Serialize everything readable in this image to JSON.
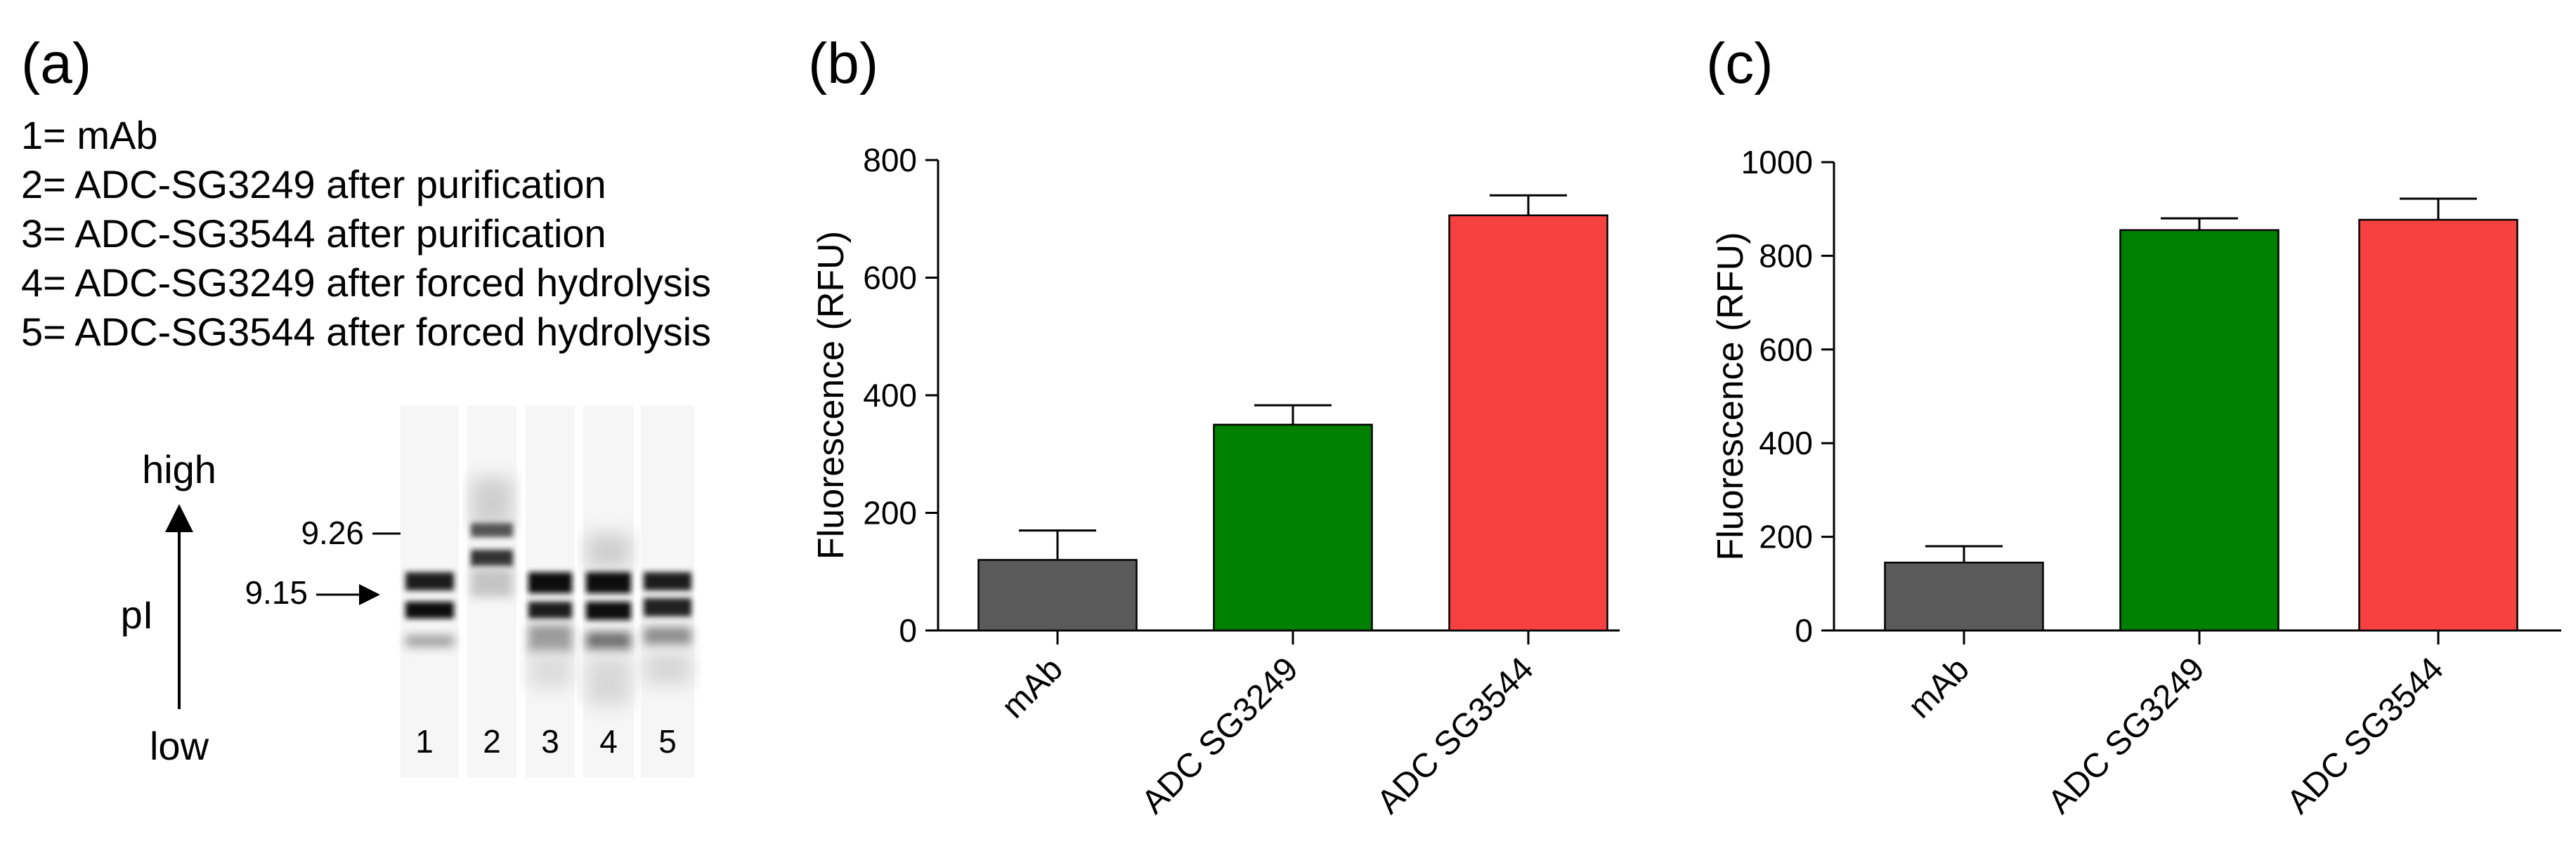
{
  "panel_a": {
    "label": "(a)",
    "legend": [
      "1= mAb",
      "2= ADC-SG3249 after purification",
      "3= ADC-SG3544 after purification",
      "4= ADC-SG3249 after forced hydrolysis",
      "5= ADC-SG3544 after forced hydrolysis"
    ],
    "axis_high": "high",
    "axis_low": "low",
    "axis_name": "pI",
    "marker_upper": "9.26",
    "marker_lower": "9.15",
    "lanes": [
      "1",
      "2",
      "3",
      "4",
      "5"
    ]
  },
  "chart_data": [
    {
      "panel_label": "(b)",
      "type": "bar",
      "categories": [
        "mAb",
        "ADC SG3249",
        "ADC SG3544"
      ],
      "values": [
        120,
        350,
        706
      ],
      "errors": [
        50,
        33,
        34
      ],
      "colors": [
        "#5a5a5a",
        "#008000",
        "#f74040"
      ],
      "ylabel": "Fluorescence (RFU)",
      "ylim": [
        0,
        800
      ],
      "yticks": [
        "0",
        "200",
        "400",
        "600",
        "800"
      ],
      "grid": false
    },
    {
      "panel_label": "(c)",
      "type": "bar",
      "categories": [
        "mAb",
        "ADC SG3249",
        "ADC SG3544"
      ],
      "values": [
        145,
        855,
        877
      ],
      "errors": [
        35,
        25,
        45
      ],
      "colors": [
        "#5a5a5a",
        "#008000",
        "#f74040"
      ],
      "ylabel": "Fluorescence (RFU)",
      "ylim": [
        0,
        1000
      ],
      "yticks": [
        "0",
        "200",
        "400",
        "600",
        "800",
        "1000"
      ],
      "grid": false
    }
  ]
}
